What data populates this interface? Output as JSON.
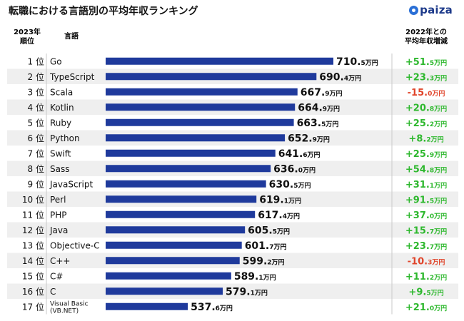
{
  "title": "転職における言語別の平均年収ランキング",
  "logo": {
    "text": "paiza"
  },
  "headers": {
    "rank_line1": "2023年",
    "rank_line2": "順位",
    "language": "言語",
    "change_line1": "2022年との",
    "change_line2": "平均年収増減"
  },
  "colors": {
    "bar": "#1f3a9c",
    "positive": "#2eb82e",
    "negative": "#e0442a",
    "row_alt": "#efefef",
    "grid": "#c8c8c8"
  },
  "chart_data": {
    "type": "bar",
    "orientation": "horizontal",
    "unit": "万円",
    "rank_suffix": " 位",
    "categories": [
      "Go",
      "TypeScript",
      "Scala",
      "Kotlin",
      "Ruby",
      "Python",
      "Swift",
      "Sass",
      "JavaScript",
      "Perl",
      "PHP",
      "Java",
      "Objective-C",
      "C++",
      "C#",
      "C",
      "Visual Basic\n(VB.NET)"
    ],
    "ranks": [
      1,
      2,
      3,
      4,
      5,
      6,
      7,
      8,
      9,
      10,
      11,
      12,
      13,
      14,
      15,
      16,
      17
    ],
    "values": [
      "710.5",
      "690.4",
      "667.9",
      "664.9",
      "663.5",
      "652.9",
      "641.6",
      "636.0",
      "630.5",
      "619.1",
      "617.4",
      "605.5",
      "601.7",
      "599.2",
      "589.1",
      "579.1",
      "537.6"
    ],
    "changes": [
      "+51.5",
      "+23.3",
      "-15.0",
      "+20.8",
      "+25.2",
      "+8.2",
      "+25.9",
      "+54.8",
      "+31.1",
      "+91.5",
      "+37.0",
      "+15.7",
      "+23.7",
      "-10.3",
      "+11.2",
      "+9.5",
      "+21.0"
    ]
  }
}
